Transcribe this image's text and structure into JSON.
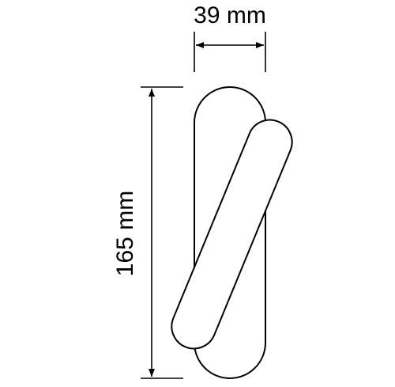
{
  "dimensions": {
    "width_label": "39 mm",
    "height_label": "165 mm"
  },
  "colors": {
    "stroke": "#000000",
    "fill": "#ffffff"
  }
}
